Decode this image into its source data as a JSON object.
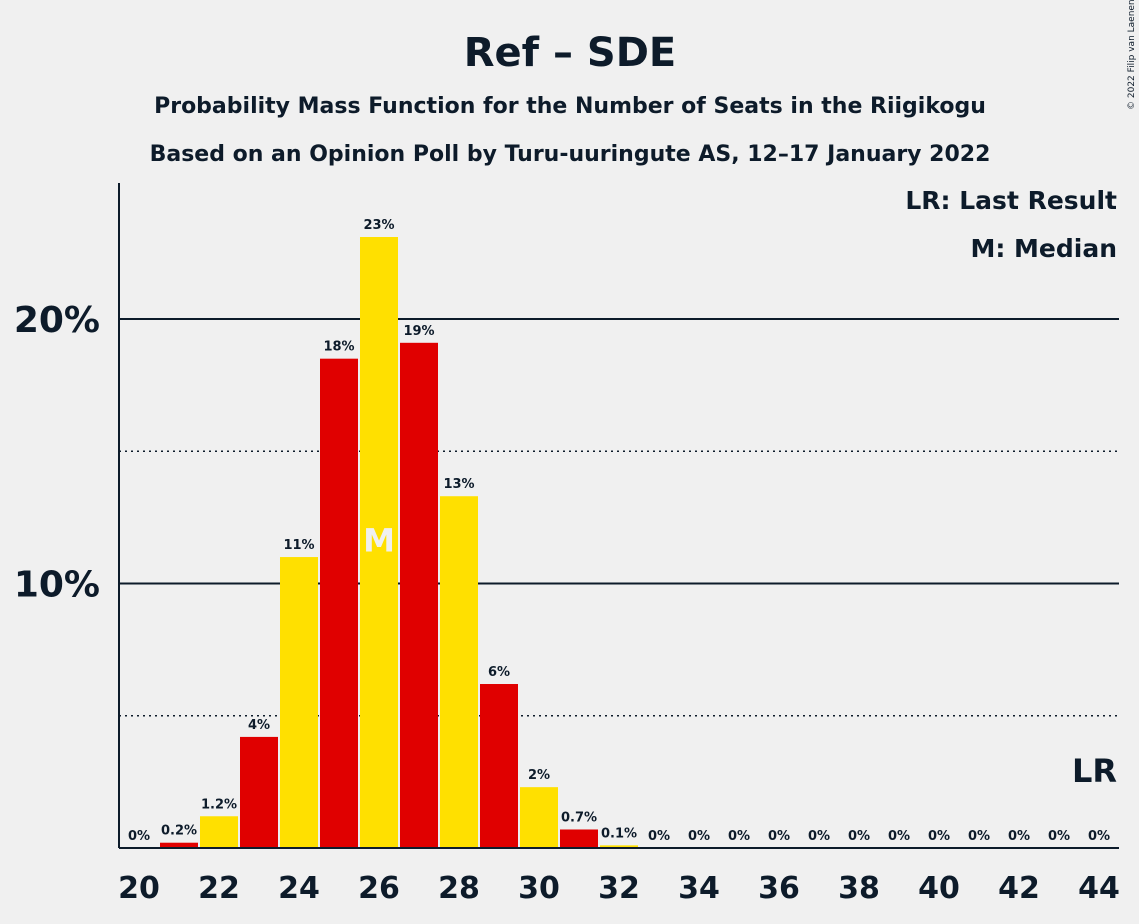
{
  "chart_data": {
    "type": "bar",
    "title": "Ref – SDE",
    "subtitle": "Probability Mass Function for the Number of Seats in the Riigikogu",
    "subtitle2": "Based on an Opinion Poll by Turu-uuringute AS, 12–17 January 2022",
    "legend": [
      "LR: Last Result",
      "M: Median"
    ],
    "legend_position": "top-right",
    "copyright": "© 2022 Filip van Laenen",
    "x": [
      20,
      21,
      22,
      23,
      24,
      25,
      26,
      27,
      28,
      29,
      30,
      31,
      32,
      33,
      34,
      35,
      36,
      37,
      38,
      39,
      40,
      41,
      42,
      43,
      44
    ],
    "values": [
      0,
      0.2,
      1.2,
      4.2,
      11.0,
      18.5,
      23.1,
      19.1,
      13.3,
      6.2,
      2.3,
      0.7,
      0.1,
      0,
      0,
      0,
      0,
      0,
      0,
      0,
      0,
      0,
      0,
      0,
      0
    ],
    "labels": [
      "0%",
      "0.2%",
      "1.2%",
      "4%",
      "11%",
      "18%",
      "23%",
      "19%",
      "13%",
      "6%",
      "2%",
      "0.7%",
      "0.1%",
      "0%",
      "0%",
      "0%",
      "0%",
      "0%",
      "0%",
      "0%",
      "0%",
      "0%",
      "0%",
      "0%",
      "0%"
    ],
    "x_tick_labels": [
      "20",
      "22",
      "24",
      "26",
      "28",
      "30",
      "32",
      "34",
      "36",
      "38",
      "40",
      "42",
      "44"
    ],
    "y_tick_labels": [
      "10%",
      "20%"
    ],
    "ylim": [
      0,
      25
    ],
    "solid_gridlines": [
      10,
      20
    ],
    "dotted_gridlines": [
      5,
      15
    ],
    "median": 26,
    "median_label": "M",
    "last_result": 44,
    "last_result_label": "LR",
    "colors": {
      "red": "#e00000",
      "yellow": "#ffe000",
      "axis": "#0d1b2a",
      "background": "#f0f0f0"
    }
  }
}
